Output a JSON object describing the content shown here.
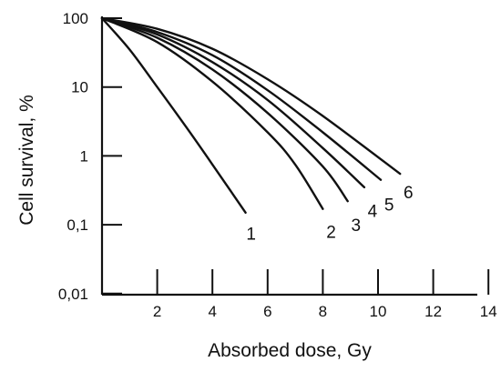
{
  "chart_data": {
    "type": "line",
    "title": "",
    "xlabel": "Absorbed dose, Gy",
    "ylabel": "Cell survival, %",
    "xlim": [
      0,
      14
    ],
    "ylim": [
      0.01,
      100
    ],
    "y_scale": "log",
    "grid": false,
    "legend": "none",
    "x_ticks": [
      2,
      4,
      6,
      8,
      10,
      12,
      14
    ],
    "x_tick_labels": [
      "2",
      "4",
      "6",
      "8",
      "10",
      "12",
      "14"
    ],
    "y_ticks": [
      0.01,
      0.1,
      1,
      10,
      100
    ],
    "y_tick_labels": [
      "0,01",
      "0,1",
      "1",
      "10",
      "100"
    ],
    "series": [
      {
        "label": "1",
        "x": [
          0,
          1,
          2,
          3,
          4,
          5.2
        ],
        "y": [
          100,
          35,
          10,
          2.8,
          0.75,
          0.15
        ]
      },
      {
        "label": "2",
        "x": [
          0,
          2,
          4,
          6,
          7,
          8
        ],
        "y": [
          100,
          45,
          12,
          2.2,
          0.75,
          0.17
        ]
      },
      {
        "label": "3",
        "x": [
          0,
          2,
          4,
          6,
          8,
          8.9
        ],
        "y": [
          100,
          52,
          18,
          4.2,
          0.7,
          0.22
        ]
      },
      {
        "label": "4",
        "x": [
          0,
          2,
          4,
          6,
          8,
          9.5
        ],
        "y": [
          100,
          58,
          23,
          6.5,
          1.3,
          0.35
        ]
      },
      {
        "label": "5",
        "x": [
          0,
          2,
          4,
          6,
          8,
          10.1
        ],
        "y": [
          100,
          63,
          29,
          9,
          2.2,
          0.45
        ]
      },
      {
        "label": "6",
        "x": [
          0,
          2,
          4,
          6,
          8,
          10.8
        ],
        "y": [
          100,
          70,
          36,
          13,
          3.8,
          0.55
        ]
      }
    ],
    "label_positions_dose": [
      {
        "label": "1",
        "x": 5.4,
        "y": 0.075
      },
      {
        "label": "2",
        "x": 8.3,
        "y": 0.08
      },
      {
        "label": "3",
        "x": 9.2,
        "y": 0.1
      },
      {
        "label": "4",
        "x": 9.8,
        "y": 0.16
      },
      {
        "label": "5",
        "x": 10.4,
        "y": 0.2
      },
      {
        "label": "6",
        "x": 11.1,
        "y": 0.3
      }
    ]
  }
}
